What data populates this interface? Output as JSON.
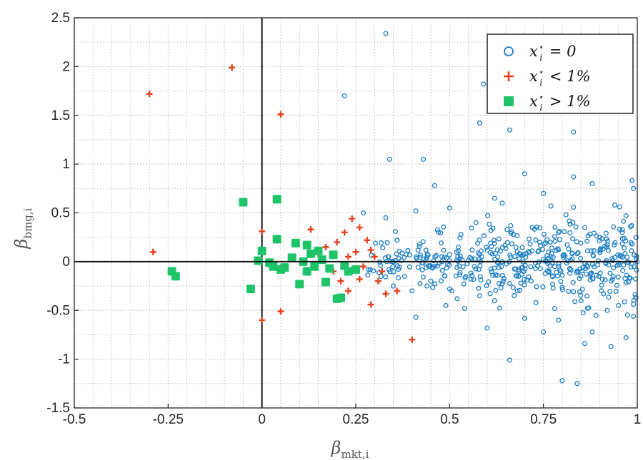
{
  "chart_data": {
    "type": "scatter",
    "xlabel": {
      "main": "β",
      "sub": "mkt,i"
    },
    "ylabel": {
      "main": "β",
      "sub": "bmg,i"
    },
    "xlim": [
      -0.5,
      1.0
    ],
    "ylim": [
      -1.5,
      2.5
    ],
    "xticks": [
      -0.5,
      -0.25,
      0,
      0.25,
      0.5,
      0.75,
      1
    ],
    "xtick_labels": [
      "-0.5",
      "-0.25",
      "0",
      "0.25",
      "0.5",
      "0.75",
      "1"
    ],
    "yticks": [
      -1.5,
      -1,
      -0.5,
      0,
      0.5,
      1,
      1.5,
      2,
      2.5
    ],
    "ytick_labels": [
      "-1.5",
      "-1",
      "-0.5",
      "0",
      "0.5",
      "1",
      "1.5",
      "2",
      "2.5"
    ],
    "grid": true,
    "legend_position": "top-right",
    "reference_lines": {
      "x": 0,
      "y": 0
    },
    "series": [
      {
        "name": "x_i* = 0",
        "legend_text": {
          "x": "x",
          "sup": "⋆",
          "sub": "i",
          "rest": " = 0"
        },
        "marker": "open-circle",
        "color": "#1f7fc4",
        "points": [
          [
            0.33,
            2.34
          ],
          [
            0.22,
            1.7
          ],
          [
            0.59,
            1.82
          ],
          [
            0.58,
            1.42
          ],
          [
            0.66,
            1.35
          ],
          [
            0.83,
            1.33
          ],
          [
            0.34,
            1.05
          ],
          [
            0.43,
            1.05
          ],
          [
            0.46,
            0.78
          ],
          [
            0.62,
            0.65
          ],
          [
            0.7,
            0.9
          ],
          [
            0.75,
            0.7
          ],
          [
            0.83,
            0.87
          ],
          [
            0.88,
            0.8
          ],
          [
            0.99,
            0.75
          ],
          [
            0.27,
            0.5
          ],
          [
            0.33,
            0.45
          ],
          [
            0.41,
            0.52
          ],
          [
            0.5,
            0.55
          ],
          [
            0.57,
            0.4
          ],
          [
            0.64,
            0.6
          ],
          [
            0.77,
            0.57
          ],
          [
            0.81,
            0.48
          ],
          [
            0.94,
            0.58
          ],
          [
            0.97,
            0.47
          ],
          [
            0.41,
            -0.57
          ],
          [
            0.49,
            -0.45
          ],
          [
            0.54,
            -0.48
          ],
          [
            0.6,
            -0.68
          ],
          [
            0.66,
            -1.01
          ],
          [
            0.7,
            -0.58
          ],
          [
            0.79,
            -0.6
          ],
          [
            0.8,
            -1.22
          ],
          [
            0.84,
            -1.25
          ],
          [
            0.86,
            -0.84
          ],
          [
            0.89,
            -0.55
          ],
          [
            0.93,
            -0.87
          ],
          [
            0.97,
            -0.78
          ],
          [
            0.99,
            -0.56
          ],
          [
            0.92,
            -0.5
          ],
          [
            0.88,
            -0.72
          ],
          [
            0.75,
            -0.72
          ],
          [
            0.35,
            -0.25
          ],
          [
            0.38,
            -0.15
          ],
          [
            0.4,
            -0.3
          ],
          [
            0.45,
            -0.2
          ],
          [
            0.5,
            -0.28
          ],
          [
            0.52,
            -0.38
          ],
          [
            0.58,
            -0.35
          ],
          [
            0.62,
            -0.4
          ],
          [
            0.68,
            -0.3
          ],
          [
            0.73,
            -0.42
          ],
          [
            0.78,
            -0.48
          ],
          [
            0.85,
            -0.4
          ],
          [
            0.91,
            -0.33
          ],
          [
            0.95,
            -0.45
          ],
          [
            0.36,
            0.22
          ],
          [
            0.42,
            0.18
          ],
          [
            0.47,
            0.3
          ],
          [
            0.53,
            0.28
          ],
          [
            0.56,
            0.12
          ],
          [
            0.61,
            0.32
          ],
          [
            0.67,
            0.28
          ],
          [
            0.72,
            0.35
          ],
          [
            0.74,
            0.2
          ],
          [
            0.79,
            0.3
          ],
          [
            0.86,
            0.35
          ],
          [
            0.9,
            0.25
          ],
          [
            0.96,
            0.3
          ]
        ],
        "cluster": {
          "x_range": [
            0.28,
            1.0
          ],
          "y_center": 0.0,
          "y_spread": 0.16,
          "count": 460,
          "seed": 7
        }
      },
      {
        "name": "x_i* < 1%",
        "legend_text": {
          "x": "x",
          "sup": "⋆",
          "sub": "i",
          "rest": " < 1%"
        },
        "marker": "plus",
        "color": "#e8401c",
        "points": [
          [
            -0.3,
            1.72
          ],
          [
            -0.08,
            1.99
          ],
          [
            0.05,
            1.51
          ],
          [
            -0.29,
            0.1
          ],
          [
            0.0,
            0.31
          ],
          [
            0.0,
            -0.6
          ],
          [
            0.05,
            -0.51
          ],
          [
            0.13,
            0.33
          ],
          [
            0.22,
            0.3
          ],
          [
            0.24,
            0.44
          ],
          [
            0.26,
            0.35
          ],
          [
            0.28,
            0.22
          ],
          [
            0.3,
            0.05
          ],
          [
            0.32,
            -0.1
          ],
          [
            0.2,
            0.2
          ],
          [
            0.17,
            0.15
          ],
          [
            0.21,
            -0.2
          ],
          [
            0.23,
            -0.3
          ],
          [
            0.29,
            -0.44
          ],
          [
            0.33,
            -0.33
          ],
          [
            0.36,
            -0.3
          ],
          [
            0.4,
            -0.8
          ],
          [
            0.25,
            0.1
          ],
          [
            0.27,
            -0.05
          ],
          [
            0.31,
            -0.2
          ],
          [
            0.23,
            0.05
          ],
          [
            0.19,
            -0.1
          ],
          [
            0.26,
            -0.18
          ],
          [
            0.29,
            0.12
          ],
          [
            0.15,
            0.08
          ]
        ]
      },
      {
        "name": "x_i* > 1%",
        "legend_text": {
          "x": "x",
          "sup": "⋆",
          "sub": "i",
          "rest": " > 1%"
        },
        "marker": "filled-square",
        "color": "#1fc46a",
        "points": [
          [
            -0.24,
            -0.1
          ],
          [
            -0.23,
            -0.15
          ],
          [
            -0.05,
            0.61
          ],
          [
            0.04,
            0.64
          ],
          [
            0.04,
            0.23
          ],
          [
            -0.03,
            -0.28
          ],
          [
            -0.01,
            0.01
          ],
          [
            0.0,
            0.11
          ],
          [
            0.02,
            -0.01
          ],
          [
            0.03,
            -0.05
          ],
          [
            0.05,
            -0.08
          ],
          [
            0.06,
            -0.06
          ],
          [
            0.08,
            0.04
          ],
          [
            0.09,
            0.19
          ],
          [
            0.1,
            -0.23
          ],
          [
            0.11,
            0.0
          ],
          [
            0.12,
            -0.1
          ],
          [
            0.12,
            0.17
          ],
          [
            0.13,
            0.08
          ],
          [
            0.14,
            -0.05
          ],
          [
            0.15,
            0.11
          ],
          [
            0.16,
            0.02
          ],
          [
            0.17,
            -0.21
          ],
          [
            0.18,
            -0.07
          ],
          [
            0.19,
            0.07
          ],
          [
            0.2,
            -0.38
          ],
          [
            0.21,
            -0.37
          ],
          [
            0.22,
            -0.04
          ],
          [
            0.23,
            -0.1
          ],
          [
            0.25,
            -0.08
          ]
        ]
      }
    ]
  }
}
